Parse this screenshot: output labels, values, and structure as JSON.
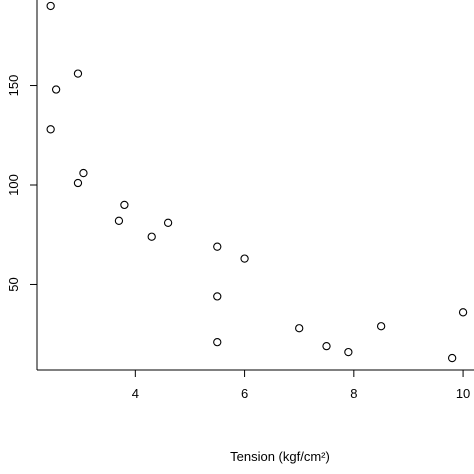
{
  "chart_data": {
    "type": "scatter",
    "xlabel": "Tension (kgf/cm²)",
    "ylabel": "",
    "xlim": [
      2.2,
      10.2
    ],
    "ylim": [
      7,
      193
    ],
    "xticks": [
      4,
      6,
      8,
      10
    ],
    "xtick_labels": [
      "4",
      "6",
      "8",
      "10"
    ],
    "yticks": [
      50,
      100,
      150
    ],
    "ytick_labels": [
      "50",
      "100",
      "150"
    ],
    "grid": false,
    "points": [
      {
        "x": 2.45,
        "y": 190
      },
      {
        "x": 2.55,
        "y": 148
      },
      {
        "x": 2.45,
        "y": 128
      },
      {
        "x": 2.95,
        "y": 156
      },
      {
        "x": 3.05,
        "y": 106
      },
      {
        "x": 2.95,
        "y": 101
      },
      {
        "x": 3.8,
        "y": 90
      },
      {
        "x": 3.7,
        "y": 82
      },
      {
        "x": 4.6,
        "y": 81
      },
      {
        "x": 4.3,
        "y": 74
      },
      {
        "x": 5.5,
        "y": 69
      },
      {
        "x": 6.0,
        "y": 63
      },
      {
        "x": 5.5,
        "y": 44
      },
      {
        "x": 5.5,
        "y": 21
      },
      {
        "x": 7.0,
        "y": 28
      },
      {
        "x": 7.5,
        "y": 19
      },
      {
        "x": 7.9,
        "y": 16
      },
      {
        "x": 8.5,
        "y": 29
      },
      {
        "x": 9.8,
        "y": 13
      },
      {
        "x": 10.0,
        "y": 36
      }
    ]
  }
}
